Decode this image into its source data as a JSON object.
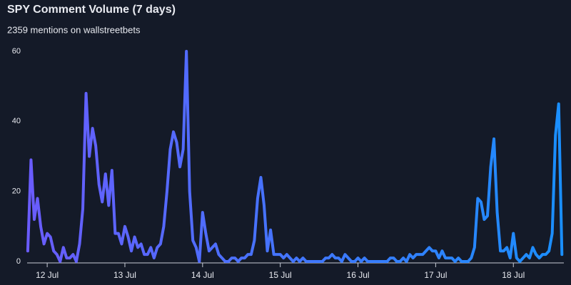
{
  "chart_data": {
    "type": "line",
    "title": "SPY Comment Volume (7 days)",
    "subtitle": "2359 mentions on wallstreetbets",
    "x": [
      -6,
      -5,
      -4,
      -3,
      -2,
      -1,
      0,
      1,
      2,
      3,
      4,
      5,
      6,
      7,
      8,
      9,
      10,
      11,
      12,
      13,
      14,
      15,
      16,
      17,
      18,
      19,
      20,
      21,
      22,
      23,
      24,
      25,
      26,
      27,
      28,
      29,
      30,
      31,
      32,
      33,
      34,
      35,
      36,
      37,
      38,
      39,
      40,
      41,
      42,
      43,
      44,
      45,
      46,
      47,
      48,
      49,
      50,
      51,
      52,
      53,
      54,
      55,
      56,
      57,
      58,
      59,
      60,
      61,
      62,
      63,
      64,
      65,
      66,
      67,
      68,
      69,
      70,
      71,
      72,
      73,
      74,
      75,
      76,
      77,
      78,
      79,
      80,
      81,
      82,
      83,
      84,
      85,
      86,
      87,
      88,
      89,
      90,
      91,
      92,
      93,
      94,
      95,
      96,
      97,
      98,
      99,
      100,
      101,
      102,
      103,
      104,
      105,
      106,
      107,
      108,
      109,
      110,
      111,
      112,
      113,
      114,
      115,
      116,
      117,
      118,
      119,
      120,
      121,
      122,
      123,
      124,
      125,
      126,
      127,
      128,
      129,
      130,
      131,
      132,
      133,
      134,
      135,
      136,
      137,
      138,
      139,
      140,
      141,
      142,
      143,
      144,
      145,
      146,
      147,
      148,
      149,
      150,
      151,
      152,
      153,
      154,
      155,
      156,
      157,
      158,
      159
    ],
    "series": [
      {
        "name": "SPY",
        "gradient": [
          "#6a5cff",
          "#1a8fff"
        ],
        "values": [
          3,
          29,
          12,
          18,
          10,
          5,
          8,
          7,
          3,
          2,
          0,
          4,
          1,
          1,
          2,
          0,
          5,
          15,
          48,
          30,
          38,
          33,
          22,
          17,
          25,
          16,
          26,
          8,
          8,
          5,
          10,
          7,
          3,
          7,
          4,
          5,
          2,
          2,
          4,
          1,
          4,
          5,
          10,
          20,
          32,
          37,
          34,
          27,
          32,
          60,
          20,
          6,
          4,
          0,
          14,
          8,
          3,
          4,
          5,
          2,
          1,
          0,
          0,
          1,
          1,
          0,
          1,
          1,
          2,
          2,
          6,
          18,
          24,
          16,
          3,
          9,
          2,
          2,
          2,
          1,
          2,
          1,
          0,
          1,
          0,
          1,
          0,
          0,
          0,
          0,
          0,
          0,
          1,
          1,
          2,
          1,
          1,
          0,
          2,
          1,
          0,
          0,
          1,
          0,
          1,
          0,
          0,
          0,
          0,
          0,
          0,
          0,
          1,
          1,
          0,
          0,
          1,
          0,
          2,
          1,
          2,
          2,
          2,
          3,
          4,
          3,
          3,
          1,
          3,
          1,
          1,
          1,
          0,
          1,
          0,
          0,
          0,
          1,
          4,
          18,
          17,
          12,
          13,
          27,
          35,
          14,
          3,
          3,
          4,
          1,
          8,
          1,
          0,
          1,
          2,
          1,
          4,
          2,
          1,
          2,
          2,
          3,
          8,
          36,
          45,
          2
        ]
      }
    ],
    "xlim": [
      -6.2,
      159.6
    ],
    "xticks": [
      {
        "value": 0,
        "label": "12 Jul"
      },
      {
        "value": 24,
        "label": "13 Jul"
      },
      {
        "value": 48,
        "label": "14 Jul"
      },
      {
        "value": 72,
        "label": "15 Jul"
      },
      {
        "value": 96,
        "label": "16 Jul"
      },
      {
        "value": 120,
        "label": "17 Jul"
      },
      {
        "value": 144,
        "label": "18 Jul"
      }
    ],
    "ylim": [
      0,
      60
    ],
    "yticks": [
      0,
      20,
      40,
      60
    ]
  }
}
